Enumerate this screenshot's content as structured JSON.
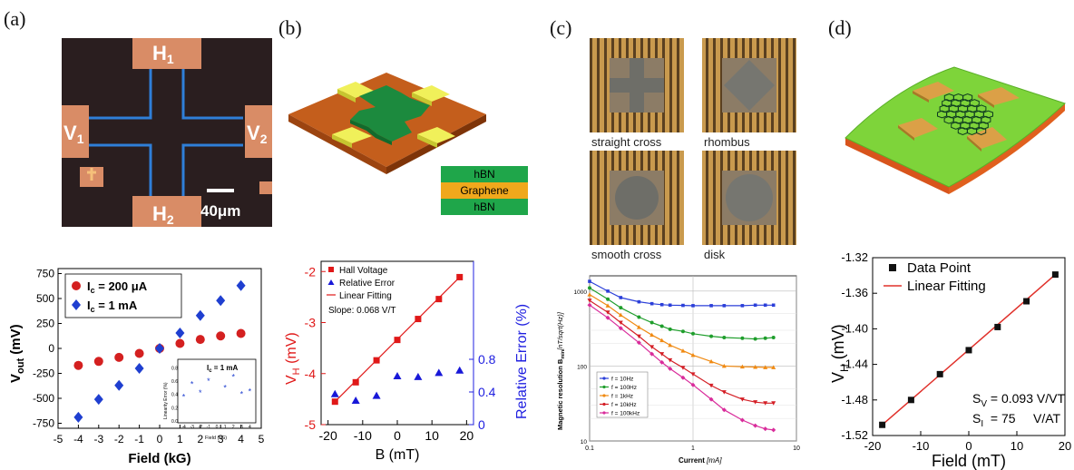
{
  "panels": {
    "a": {
      "label": "(a)",
      "device": {
        "pads": [
          "H",
          "H",
          "V",
          "V"
        ],
        "pad_subs": [
          "1",
          "2",
          "1",
          "2"
        ],
        "scale_bar": "40μm"
      },
      "chart_data": {
        "type": "scatter",
        "xlabel": "Field (kG)",
        "ylabel_main": "V",
        "ylabel_sub": "out",
        "ylabel_unit": " (mV)",
        "xlim": [
          -5,
          5
        ],
        "ylim": [
          -800,
          800
        ],
        "xticks": [
          "-5",
          "-4",
          "-3",
          "-2",
          "-1",
          "0",
          "1",
          "2",
          "3",
          "4",
          "5"
        ],
        "yticks": [
          "750",
          "500",
          "250",
          "0",
          "-250",
          "-500",
          "-750"
        ],
        "series": [
          {
            "name_main": "I",
            "name_sub": "c",
            "name_tail": " = 200 μA",
            "color": "#d42020",
            "marker": "circle",
            "x": [
              -4,
              -3,
              -2,
              -1,
              0,
              1,
              2,
              3,
              4
            ],
            "y": [
              -170,
              -130,
              -90,
              -50,
              0,
              50,
              90,
              125,
              150
            ]
          },
          {
            "name_main": "I",
            "name_sub": "c",
            "name_tail": " = 1 mA",
            "color": "#1f3fd0",
            "marker": "diamond",
            "x": [
              -4,
              -3,
              -2,
              -1,
              0,
              1,
              2,
              3,
              4
            ],
            "y": [
              -690,
              -510,
              -370,
              -200,
              0,
              155,
              330,
              480,
              630
            ]
          }
        ],
        "inset": {
          "title": "I",
          "title_sub": "c",
          "title_tail": " = 1 mA",
          "ylabel": "Linearity Error (%)",
          "xlabel": "Field (kG)",
          "yticks": [
            "0.8",
            "0.6",
            "0.4",
            "0.2",
            "0.0"
          ],
          "xticks": [
            "-4",
            "-3",
            "-2",
            "-1",
            "0",
            "1",
            "2",
            "3",
            "4"
          ],
          "x": [
            -4,
            -3,
            -2,
            -1,
            1,
            2,
            3,
            4
          ],
          "y": [
            0.36,
            0.55,
            0.42,
            0.6,
            0.5,
            0.66,
            0.4,
            0.44
          ],
          "color": "#1f3fd0"
        }
      }
    },
    "b": {
      "label": "(b)",
      "stack": [
        "hBN",
        "Graphene",
        "hBN"
      ],
      "stack_colors": [
        "#1fa64a",
        "#f0a81c",
        "#1fa64a"
      ],
      "chart_data": {
        "type": "scatter",
        "xlabel": "B (mT)",
        "ylabel_left_main": "V",
        "ylabel_left_sub": "H",
        "ylabel_left_unit": " (mV)",
        "ylabel_right": "Relative Error (%)",
        "xlim": [
          -22,
          22
        ],
        "ylim_left": [
          -5,
          -1.8
        ],
        "ylim_right": [
          0,
          2.0
        ],
        "xticks": [
          "-20",
          "-10",
          "0",
          "10",
          "20"
        ],
        "yticks_left": [
          "-2",
          "-3",
          "-4",
          "-5"
        ],
        "yticks_right": [
          "0.8",
          "0.4",
          "0"
        ],
        "legend": [
          "Hall Voltage",
          "Relative Error",
          "Linear Fitting"
        ],
        "annotation": "Slope: 0.068 V/T",
        "hall": {
          "x": [
            -18,
            -12,
            -6,
            0,
            6,
            12,
            18
          ],
          "y": [
            -4.55,
            -4.17,
            -3.74,
            -3.34,
            -2.93,
            -2.54,
            -2.11
          ],
          "color": "#e01818"
        },
        "error": {
          "x": [
            -18,
            -12,
            -6,
            0,
            6,
            12,
            18
          ],
          "y": [
            0.38,
            0.3,
            0.36,
            0.6,
            0.59,
            0.64,
            0.67
          ],
          "color": "#1818d8"
        },
        "fit": {
          "x": [
            -18,
            18
          ],
          "y": [
            -4.55,
            -2.11
          ]
        }
      }
    },
    "c": {
      "label": "(c)",
      "shapes": [
        "straight cross",
        "rhombus",
        "smooth cross",
        "disk"
      ],
      "chart_data": {
        "type": "line",
        "xlabel": "Current",
        "xlabel_unit": "[mA]",
        "ylabel": "Magnetic resolution B",
        "ylabel_sub": "min",
        "ylabel_unit": "[nT/sqrt(Hz)]",
        "xscale": "log",
        "yscale": "log",
        "xlim": [
          0.1,
          10
        ],
        "ylim": [
          10,
          1600
        ],
        "xticks": [
          "0.1",
          "1",
          "10"
        ],
        "yticks": [
          "1000",
          "100",
          "10"
        ],
        "series": [
          {
            "name": "f = 10Hz",
            "color": "#2b3fd9",
            "x": [
              0.1,
              0.15,
              0.2,
              0.3,
              0.4,
              0.5,
              0.6,
              0.8,
              1,
              1.5,
              2,
              3,
              4,
              5,
              6
            ],
            "y": [
              1350,
              1000,
              820,
              720,
              680,
              660,
              650,
              645,
              640,
              640,
              640,
              640,
              650,
              650,
              650
            ]
          },
          {
            "name": "f = 100Hz",
            "color": "#1f9e2c",
            "x": [
              0.1,
              0.15,
              0.2,
              0.3,
              0.4,
              0.5,
              0.6,
              0.8,
              1,
              1.5,
              2,
              3,
              4,
              5,
              6
            ],
            "y": [
              1100,
              780,
              600,
              450,
              380,
              340,
              310,
              290,
              270,
              250,
              240,
              235,
              230,
              235,
              240
            ]
          },
          {
            "name": "f = 1kHz",
            "color": "#f08a12",
            "x": [
              0.1,
              0.15,
              0.2,
              0.3,
              0.4,
              0.5,
              0.6,
              0.8,
              1,
              1.5,
              2,
              3,
              4,
              5,
              6
            ],
            "y": [
              900,
              640,
              480,
              330,
              260,
              220,
              190,
              160,
              140,
              115,
              100,
              98,
              97,
              96,
              96
            ]
          },
          {
            "name": "f = 10kHz",
            "color": "#d41f26",
            "x": [
              0.1,
              0.15,
              0.2,
              0.3,
              0.4,
              0.5,
              0.6,
              0.8,
              1,
              1.5,
              2,
              3,
              4,
              5,
              6
            ],
            "y": [
              750,
              520,
              380,
              250,
              180,
              145,
              120,
              95,
              78,
              55,
              45,
              36,
              33,
              32,
              32
            ]
          },
          {
            "name": "f = 100kHz",
            "color": "#d92c9b",
            "x": [
              0.1,
              0.15,
              0.2,
              0.3,
              0.4,
              0.5,
              0.6,
              0.8,
              1,
              1.5,
              2,
              3,
              4,
              5,
              6
            ],
            "y": [
              650,
              440,
              320,
              205,
              145,
              112,
              92,
              70,
              56,
              36,
              26,
              19,
              16,
              14.5,
              14
            ]
          }
        ]
      }
    },
    "d": {
      "label": "(d)",
      "chart_data": {
        "type": "scatter",
        "xlabel": "Field (mT)",
        "ylabel_main": "V",
        "ylabel_sub": "H",
        "ylabel_unit": " (mV)",
        "xlim": [
          -20,
          20
        ],
        "ylim": [
          -1.52,
          -1.32
        ],
        "xticks": [
          "-20",
          "-10",
          "0",
          "10",
          "20"
        ],
        "yticks": [
          "-1.32",
          "-1.36",
          "-1.40",
          "-1.44",
          "-1.48",
          "-1.52"
        ],
        "legend": [
          "Data Point",
          "Linear Fitting"
        ],
        "annotation_sv": "S",
        "annotation_sv_sub": "V",
        "annotation_sv_tail": " = 0.093 V/VT",
        "annotation_si": "S",
        "annotation_si_sub": "I",
        "annotation_si_tail": "  = 75     V/AT",
        "points": {
          "x": [
            -18,
            -12,
            -6,
            0,
            6,
            12,
            18
          ],
          "y": [
            -1.508,
            -1.48,
            -1.451,
            -1.424,
            -1.398,
            -1.369,
            -1.339
          ],
          "color": "#111111"
        },
        "fit": {
          "x": [
            -18,
            18
          ],
          "y": [
            -1.508,
            -1.339
          ],
          "color": "#e0302a"
        }
      }
    }
  }
}
